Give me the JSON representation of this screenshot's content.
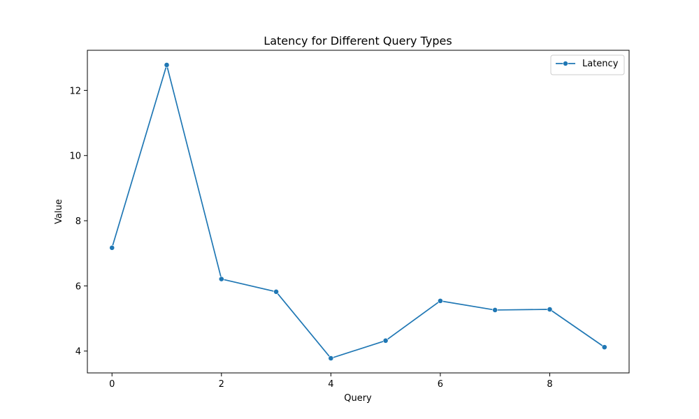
{
  "chart_data": {
    "type": "line",
    "title": "Latency for Different Query Types",
    "xlabel": "Query",
    "ylabel": "Value",
    "x": [
      0,
      1,
      2,
      3,
      4,
      5,
      6,
      7,
      8,
      9
    ],
    "series": [
      {
        "name": "Latency",
        "values": [
          7.17,
          12.78,
          6.21,
          5.82,
          3.78,
          4.32,
          5.54,
          5.26,
          5.28,
          4.12
        ],
        "color": "#1f77b4",
        "marker": "circle"
      }
    ],
    "xlim": [
      -0.45,
      9.45
    ],
    "ylim": [
      3.33,
      13.23
    ],
    "x_ticks": [
      0,
      2,
      4,
      6,
      8
    ],
    "y_ticks": [
      4,
      6,
      8,
      10,
      12
    ],
    "grid": false,
    "legend_position": "upper right"
  }
}
